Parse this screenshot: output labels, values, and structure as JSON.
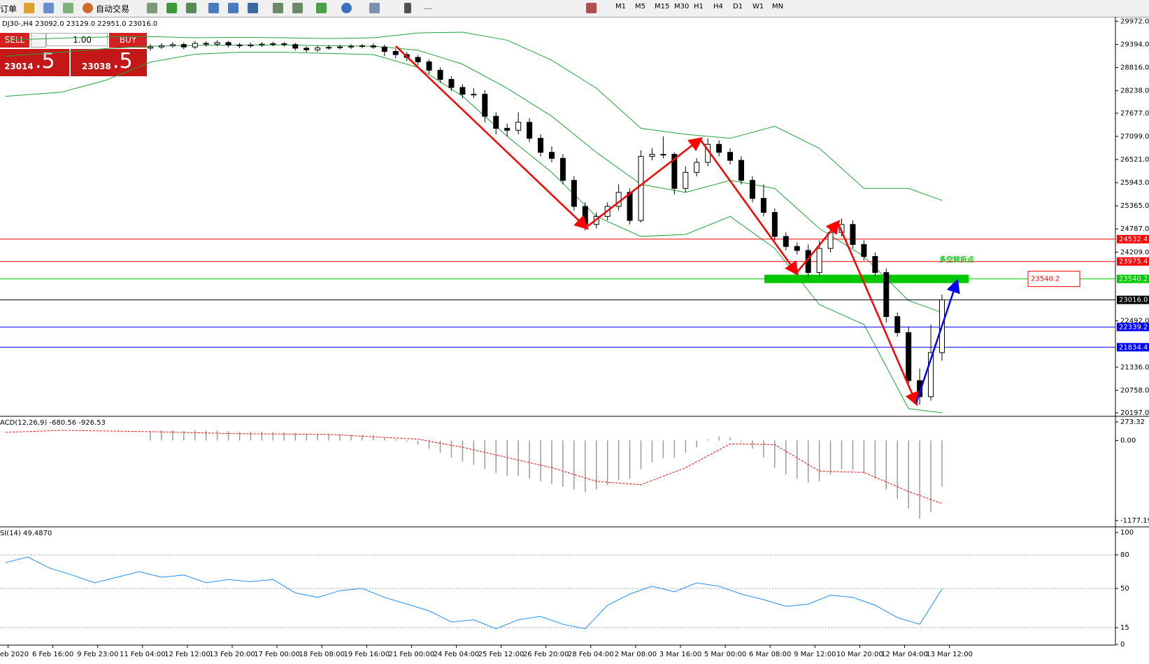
{
  "toolbar": {
    "order": "订单",
    "auto_trade": "自动交易",
    "timeframes": [
      "M1",
      "M5",
      "M15",
      "M30",
      "H1",
      "H4",
      "D1",
      "W1",
      "MN"
    ]
  },
  "trade_panel": {
    "sell": "SELL",
    "buy": "BUY",
    "lot": "1.00",
    "sell_small": "23014",
    "sell_big": ".5",
    "buy_small": "23038",
    "buy_big": ".5"
  },
  "chart_data": [
    {
      "type": "candlestick",
      "header": "DJ30-,H4  23092.0 23129.0 22951.0 23016.0",
      "ylim": [
        20197,
        29972
      ],
      "yticks": [
        {
          "value": 29972,
          "label": "29972.0"
        },
        {
          "value": 29394,
          "label": "29394.0"
        },
        {
          "value": 28816,
          "label": "28816.0"
        },
        {
          "value": 28238,
          "label": "28238.0"
        },
        {
          "value": 27677,
          "label": "27677.0"
        },
        {
          "value": 27099,
          "label": "27099.0"
        },
        {
          "value": 26521,
          "label": "26521.0"
        },
        {
          "value": 25943,
          "label": "25943.0"
        },
        {
          "value": 25365,
          "label": "25365.0"
        },
        {
          "value": 24787,
          "label": "24787.0"
        },
        {
          "value": 24209,
          "label": "24209.0"
        },
        {
          "value": 22492,
          "label": "22492.0"
        },
        {
          "value": 21336,
          "label": "21336.0"
        },
        {
          "value": 20758,
          "label": "20758.0"
        },
        {
          "value": 20197,
          "label": "20197.0"
        }
      ],
      "open": [
        29300,
        29330,
        29360,
        29390,
        29330,
        29420,
        29400,
        29440,
        29380,
        29360,
        29380,
        29400,
        29410,
        29390,
        29300,
        29260,
        29310,
        29320,
        29330,
        29350,
        29360,
        29330,
        29220,
        29140,
        29070,
        28960,
        28750,
        28520,
        28320,
        28150,
        28150,
        27600,
        27300,
        27250,
        27450,
        27050,
        26700,
        26550,
        26000,
        25350,
        24900,
        25100,
        25350,
        25700,
        25000,
        26600,
        26650,
        26650,
        25800,
        26200,
        26450,
        26900,
        26700,
        26500,
        26000,
        25550,
        25200,
        24600,
        24350,
        24250,
        23700,
        24300,
        24700,
        24900,
        24400,
        24100,
        23700,
        22600,
        22200,
        21000,
        20600,
        21700
      ],
      "high": [
        29400,
        29420,
        29450,
        29440,
        29480,
        29470,
        29500,
        29480,
        29430,
        29440,
        29450,
        29460,
        29450,
        29430,
        29350,
        29370,
        29380,
        29390,
        29400,
        29410,
        29420,
        29390,
        29280,
        29200,
        29130,
        29020,
        28820,
        28600,
        28400,
        28300,
        28250,
        27700,
        27420,
        27700,
        27550,
        27150,
        26850,
        26650,
        26100,
        25450,
        25200,
        25450,
        25900,
        25800,
        26750,
        26800,
        27100,
        26700,
        26350,
        26550,
        27050,
        27000,
        26800,
        26600,
        26100,
        25900,
        25300,
        24700,
        24450,
        24400,
        24500,
        24850,
        25050,
        25000,
        24500,
        24200,
        23800,
        22700,
        22350,
        21300,
        22400,
        23150
      ],
      "low": [
        29240,
        29280,
        29310,
        29270,
        29280,
        29340,
        29350,
        29320,
        29300,
        29310,
        29330,
        29350,
        29340,
        29240,
        29200,
        29210,
        29260,
        29270,
        29280,
        29300,
        29280,
        29100,
        29050,
        28980,
        28870,
        28660,
        28430,
        28230,
        28050,
        28050,
        27450,
        27150,
        27100,
        27150,
        26950,
        26600,
        26450,
        25900,
        25250,
        24750,
        24800,
        25000,
        25250,
        24900,
        24950,
        26500,
        26550,
        25650,
        25700,
        26100,
        26350,
        26600,
        26400,
        25900,
        25450,
        25100,
        24500,
        24250,
        24150,
        23550,
        23600,
        24200,
        24600,
        24300,
        24000,
        23600,
        22450,
        22100,
        20900,
        20400,
        20500,
        21500
      ],
      "close": [
        29330,
        29360,
        29390,
        29330,
        29420,
        29400,
        29440,
        29380,
        29360,
        29380,
        29400,
        29410,
        29390,
        29300,
        29260,
        29310,
        29320,
        29330,
        29350,
        29360,
        29330,
        29220,
        29140,
        29070,
        28960,
        28750,
        28520,
        28320,
        28150,
        28150,
        27600,
        27300,
        27250,
        27450,
        27050,
        26700,
        26550,
        26000,
        25350,
        24900,
        25100,
        25350,
        25700,
        25000,
        26600,
        26650,
        26650,
        25800,
        26200,
        26450,
        26900,
        26700,
        26500,
        26000,
        25550,
        25200,
        24600,
        24350,
        24250,
        23700,
        24300,
        24700,
        24900,
        24400,
        24100,
        23700,
        22600,
        22200,
        21000,
        20600,
        21700,
        23016
      ],
      "bands": {
        "color": "#22a33a",
        "x": [
          -13,
          -8,
          -4,
          0,
          4,
          8,
          12,
          16,
          20,
          24,
          28,
          32,
          36,
          40,
          44,
          48,
          52,
          56,
          60,
          64,
          68,
          71
        ],
        "upper": [
          29500,
          29550,
          29580,
          29590,
          29560,
          29570,
          29560,
          29540,
          29560,
          29680,
          29700,
          29500,
          29000,
          28300,
          27300,
          27150,
          27050,
          27350,
          26800,
          25800,
          25800,
          25500
        ],
        "middle": [
          29100,
          29200,
          29290,
          29350,
          29370,
          29380,
          29380,
          29360,
          29350,
          29250,
          28900,
          28300,
          27600,
          26700,
          25900,
          25700,
          26000,
          25800,
          24800,
          24100,
          23000,
          22700
        ],
        "lower": [
          28100,
          28200,
          28500,
          28950,
          29150,
          29200,
          29200,
          29170,
          29140,
          28820,
          28100,
          27100,
          26200,
          25100,
          24600,
          24650,
          25100,
          24300,
          22900,
          22400,
          20300,
          20200
        ]
      },
      "levels": [
        {
          "value": 24532.4,
          "color": "#ff0000"
        },
        {
          "value": 23975.4,
          "color": "#ff0000"
        },
        {
          "value": 23540.2,
          "color": "#00c800"
        },
        {
          "value": 23016,
          "label": "23016.0",
          "color": "#000000"
        },
        {
          "value": 22339.2,
          "color": "#0000ff"
        },
        {
          "value": 21834.4,
          "color": "#0000ff"
        }
      ],
      "annotation": "多空转折点"
    },
    {
      "type": "macd",
      "title": "ACD(12,26,9) -680.56 -926.53",
      "ylim": [
        -1177.19,
        273.32
      ],
      "yticks": [
        273.32,
        {
          "value": 0,
          "label": "0.00"
        },
        -1177.19
      ],
      "histogram": [
        140,
        150,
        150,
        140,
        150,
        145,
        150,
        140,
        130,
        130,
        130,
        125,
        120,
        110,
        100,
        95,
        95,
        90,
        85,
        80,
        75,
        50,
        20,
        -20,
        -60,
        -120,
        -180,
        -250,
        -310,
        -360,
        -420,
        -480,
        -520,
        -520,
        -560,
        -600,
        -640,
        -680,
        -720,
        -760,
        -720,
        -660,
        -580,
        -560,
        -420,
        -320,
        -260,
        -250,
        -180,
        -100,
        20,
        60,
        50,
        -20,
        -120,
        -250,
        -400,
        -500,
        -560,
        -620,
        -600,
        -500,
        -420,
        -430,
        -480,
        -560,
        -720,
        -860,
        -1000,
        -1150,
        -1050,
        -680.56
      ],
      "histogram_color": "#9a9a9a",
      "signal": {
        "color": "#ff0000",
        "x": [
          -13,
          -8,
          0,
          8,
          16,
          24,
          28,
          32,
          36,
          40,
          44,
          48,
          52,
          56,
          60,
          64,
          68,
          71
        ],
        "values": [
          120,
          150,
          130,
          100,
          90,
          20,
          -100,
          -250,
          -400,
          -600,
          -650,
          -400,
          -50,
          -60,
          -450,
          -470,
          -750,
          -926.53
        ]
      }
    },
    {
      "type": "line",
      "title": "SI(14) 49.4870",
      "color": "#1e90ff",
      "ylim": [
        0,
        100
      ],
      "yticks": [
        0,
        15,
        50,
        80,
        100
      ],
      "x": [
        -13,
        -11,
        -9,
        -7,
        -5,
        -3,
        -1,
        1,
        3,
        5,
        7,
        9,
        11,
        13,
        15,
        17,
        19,
        21,
        23,
        25,
        27,
        29,
        31,
        33,
        35,
        37,
        39,
        41,
        43,
        45,
        47,
        49,
        51,
        53,
        55,
        57,
        59,
        61,
        63,
        65,
        67,
        69,
        71
      ],
      "values": [
        73,
        78,
        68,
        62,
        55,
        60,
        65,
        60,
        62,
        55,
        58,
        56,
        58,
        46,
        42,
        48,
        50,
        42,
        36,
        30,
        20,
        22,
        14,
        22,
        25,
        18,
        14,
        35,
        45,
        52,
        47,
        55,
        52,
        45,
        40,
        34,
        36,
        44,
        42,
        35,
        24,
        18,
        49.487
      ],
      "time_axis": [
        "eb 2020",
        "6 Feb 16:00",
        "9 Feb 23:00",
        "11 Feb 04:00",
        "12 Feb 12:00",
        "13 Feb 20:00",
        "17 Feb 00:00",
        "18 Feb 08:00",
        "19 Feb 16:00",
        "21 Feb 00:00",
        "24 Feb 04:00",
        "25 Feb 12:00",
        "26 Feb 20:00",
        "28 Feb 04:00",
        "2 Mar 08:00",
        "3 Mar 16:00",
        "5 Mar 00:00",
        "6 Mar 08:00",
        "9 Mar 12:00",
        "10 Mar 20:00",
        "12 Mar 04:00",
        "13 Mar 12:00"
      ]
    }
  ]
}
